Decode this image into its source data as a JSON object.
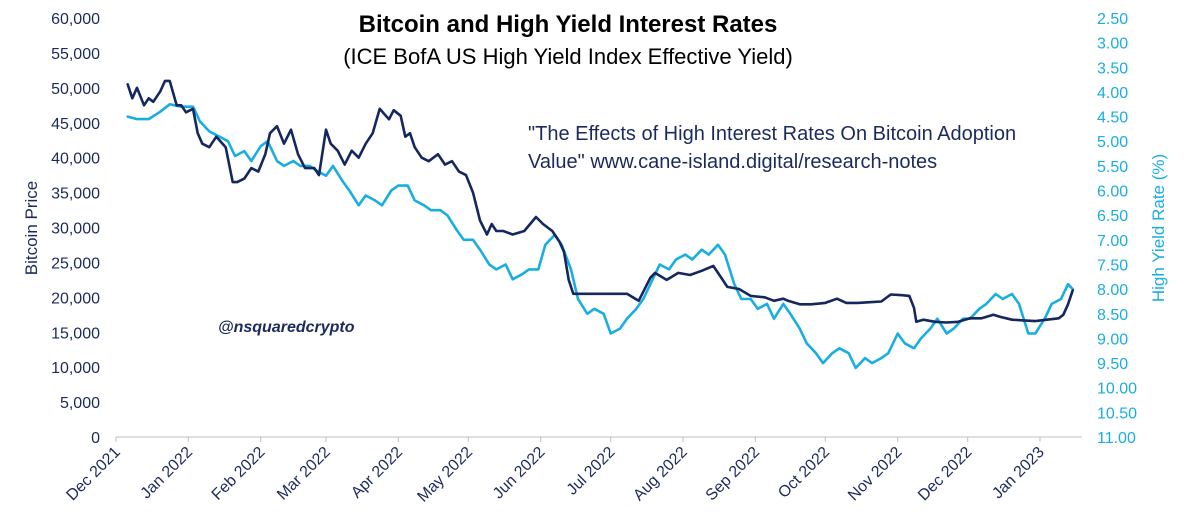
{
  "chart_data": {
    "type": "line",
    "title": "Bitcoin and High Yield Interest Rates",
    "subtitle": "(ICE BofA US High Yield Index Effective Yield)",
    "ylabel": "Bitcoin Price",
    "ylabel_right": "High Yield Rate (%)",
    "ylim": [
      0,
      60000
    ],
    "ylim_right": [
      2.5,
      11.0
    ],
    "right_axis_inverted": true,
    "yticks": [
      "0",
      "5,000",
      "10,000",
      "15,000",
      "20,000",
      "25,000",
      "30,000",
      "35,000",
      "40,000",
      "45,000",
      "50,000",
      "55,000",
      "60,000"
    ],
    "yticks_right": [
      "2.50",
      "3.00",
      "3.50",
      "4.00",
      "4.50",
      "5.00",
      "5.50",
      "6.00",
      "6.50",
      "7.00",
      "7.50",
      "8.00",
      "8.50",
      "9.00",
      "9.50",
      "10.00",
      "10.50",
      "11.00"
    ],
    "xticks": [
      "Dec 2021",
      "Jan 2022",
      "Feb 2022",
      "Mar 2022",
      "Apr 2022",
      "May 2022",
      "Jun 2022",
      "Jul 2022",
      "Aug 2022",
      "Sep 2022",
      "Oct 2022",
      "Nov 2022",
      "Dec 2022",
      "Jan 2023"
    ],
    "grid": false,
    "legend": "none",
    "annotation": [
      "\"The Effects of High Interest Rates On Bitcoin Adoption",
      "Value\"   www.cane-island.digital/research-notes"
    ],
    "watermark": "@nsquaredcrypto",
    "series": [
      {
        "axis": "left",
        "color": "#15275f",
        "x": [
          "2021-12-06",
          "2021-12-08",
          "2021-12-10",
          "2021-12-13",
          "2021-12-15",
          "2021-12-17",
          "2021-12-20",
          "2021-12-22",
          "2021-12-24",
          "2021-12-27",
          "2021-12-29",
          "2021-12-31",
          "2022-01-03",
          "2022-01-05",
          "2022-01-07",
          "2022-01-10",
          "2022-01-13",
          "2022-01-17",
          "2022-01-20",
          "2022-01-22",
          "2022-01-25",
          "2022-01-28",
          "2022-01-31",
          "2022-02-03",
          "2022-02-05",
          "2022-02-08",
          "2022-02-11",
          "2022-02-14",
          "2022-02-17",
          "2022-02-20",
          "2022-02-24",
          "2022-02-26",
          "2022-03-01",
          "2022-03-03",
          "2022-03-06",
          "2022-03-09",
          "2022-03-12",
          "2022-03-15",
          "2022-03-18",
          "2022-03-21",
          "2022-03-24",
          "2022-03-28",
          "2022-03-30",
          "2022-04-02",
          "2022-04-04",
          "2022-04-06",
          "2022-04-08",
          "2022-04-11",
          "2022-04-14",
          "2022-04-18",
          "2022-04-21",
          "2022-04-24",
          "2022-04-27",
          "2022-04-30",
          "2022-05-03",
          "2022-05-06",
          "2022-05-09",
          "2022-05-11",
          "2022-05-13",
          "2022-05-16",
          "2022-05-20",
          "2022-05-25",
          "2022-05-30",
          "2022-06-02",
          "2022-06-06",
          "2022-06-09",
          "2022-06-11",
          "2022-06-13",
          "2022-06-15",
          "2022-06-18",
          "2022-06-22",
          "2022-06-27",
          "2022-07-01",
          "2022-07-06",
          "2022-07-08",
          "2022-07-13",
          "2022-07-18",
          "2022-07-20",
          "2022-07-25",
          "2022-07-30",
          "2022-08-04",
          "2022-08-09",
          "2022-08-14",
          "2022-08-18",
          "2022-08-20",
          "2022-08-25",
          "2022-08-30",
          "2022-09-05",
          "2022-09-09",
          "2022-09-13",
          "2022-09-15",
          "2022-09-20",
          "2022-09-25",
          "2022-10-01",
          "2022-10-06",
          "2022-10-10",
          "2022-10-15",
          "2022-10-20",
          "2022-10-25",
          "2022-10-29",
          "2022-11-03",
          "2022-11-06",
          "2022-11-08",
          "2022-11-09",
          "2022-11-12",
          "2022-11-17",
          "2022-11-22",
          "2022-11-27",
          "2022-12-02",
          "2022-12-07",
          "2022-12-12",
          "2022-12-15",
          "2022-12-20",
          "2022-12-25",
          "2022-12-30",
          "2023-01-04",
          "2023-01-09",
          "2023-01-11",
          "2023-01-13",
          "2023-01-15"
        ],
        "values": [
          50500,
          48500,
          50000,
          47500,
          48500,
          48000,
          49500,
          51000,
          51000,
          47500,
          47500,
          46500,
          47000,
          43500,
          42000,
          41500,
          43000,
          41500,
          36500,
          36500,
          37000,
          38500,
          38000,
          40500,
          43500,
          44500,
          42000,
          44000,
          40500,
          38500,
          38500,
          37500,
          44000,
          42000,
          41000,
          39000,
          41000,
          40000,
          42000,
          43500,
          47000,
          45500,
          46800,
          46000,
          43000,
          43500,
          41500,
          40000,
          39500,
          40500,
          39000,
          39500,
          38000,
          37500,
          35000,
          31000,
          29000,
          30500,
          29500,
          29500,
          29000,
          29500,
          31500,
          30500,
          29500,
          28000,
          26500,
          22500,
          20500,
          20500,
          20500,
          20500,
          20500,
          20500,
          20500,
          19500,
          22800,
          23500,
          22500,
          23500,
          23200,
          23800,
          24500,
          22500,
          21500,
          21200,
          20200,
          20000,
          19500,
          19800,
          19500,
          19000,
          19000,
          19200,
          19800,
          19200,
          19200,
          19300,
          19400,
          20400,
          20300,
          20200,
          18500,
          16500,
          16800,
          16500,
          16400,
          16500,
          17000,
          17000,
          17500,
          17200,
          16800,
          16700,
          16600,
          16800,
          17000,
          17500,
          19000,
          21000
        ]
      },
      {
        "axis": "right",
        "color": "#19aee0",
        "x": [
          "2021-12-06",
          "2021-12-10",
          "2021-12-15",
          "2021-12-20",
          "2021-12-24",
          "2021-12-29",
          "2022-01-03",
          "2022-01-06",
          "2022-01-10",
          "2022-01-14",
          "2022-01-18",
          "2022-01-21",
          "2022-01-25",
          "2022-01-28",
          "2022-02-01",
          "2022-02-04",
          "2022-02-08",
          "2022-02-11",
          "2022-02-15",
          "2022-02-18",
          "2022-02-22",
          "2022-02-25",
          "2022-03-01",
          "2022-03-04",
          "2022-03-08",
          "2022-03-11",
          "2022-03-15",
          "2022-03-18",
          "2022-03-22",
          "2022-03-25",
          "2022-03-29",
          "2022-04-01",
          "2022-04-05",
          "2022-04-08",
          "2022-04-12",
          "2022-04-15",
          "2022-04-19",
          "2022-04-22",
          "2022-04-26",
          "2022-04-29",
          "2022-05-03",
          "2022-05-06",
          "2022-05-10",
          "2022-05-13",
          "2022-05-17",
          "2022-05-20",
          "2022-05-24",
          "2022-05-27",
          "2022-05-31",
          "2022-06-03",
          "2022-06-07",
          "2022-06-10",
          "2022-06-14",
          "2022-06-17",
          "2022-06-21",
          "2022-06-24",
          "2022-06-28",
          "2022-07-01",
          "2022-07-05",
          "2022-07-08",
          "2022-07-12",
          "2022-07-15",
          "2022-07-19",
          "2022-07-22",
          "2022-07-26",
          "2022-07-29",
          "2022-08-02",
          "2022-08-05",
          "2022-08-09",
          "2022-08-12",
          "2022-08-16",
          "2022-08-19",
          "2022-08-23",
          "2022-08-26",
          "2022-08-30",
          "2022-09-02",
          "2022-09-06",
          "2022-09-09",
          "2022-09-13",
          "2022-09-16",
          "2022-09-20",
          "2022-09-23",
          "2022-09-27",
          "2022-09-30",
          "2022-10-04",
          "2022-10-07",
          "2022-10-11",
          "2022-10-14",
          "2022-10-18",
          "2022-10-21",
          "2022-10-25",
          "2022-10-28",
          "2022-11-01",
          "2022-11-04",
          "2022-11-08",
          "2022-11-11",
          "2022-11-15",
          "2022-11-18",
          "2022-11-22",
          "2022-11-25",
          "2022-11-29",
          "2022-12-02",
          "2022-12-06",
          "2022-12-09",
          "2022-12-13",
          "2022-12-16",
          "2022-12-20",
          "2022-12-23",
          "2022-12-27",
          "2022-12-30",
          "2023-01-03",
          "2023-01-06",
          "2023-01-10",
          "2023-01-13",
          "2023-01-15"
        ],
        "values": [
          4.5,
          4.55,
          4.55,
          4.4,
          4.25,
          4.3,
          4.3,
          4.6,
          4.8,
          4.9,
          5.0,
          5.3,
          5.2,
          5.4,
          5.1,
          5.0,
          5.4,
          5.5,
          5.4,
          5.5,
          5.5,
          5.6,
          5.7,
          5.5,
          5.8,
          6.0,
          6.3,
          6.1,
          6.2,
          6.3,
          6.0,
          5.9,
          5.9,
          6.2,
          6.3,
          6.4,
          6.4,
          6.5,
          6.8,
          7.0,
          7.0,
          7.2,
          7.5,
          7.6,
          7.5,
          7.8,
          7.7,
          7.6,
          7.6,
          7.1,
          6.9,
          7.1,
          7.6,
          8.2,
          8.5,
          8.4,
          8.5,
          8.9,
          8.8,
          8.6,
          8.4,
          8.2,
          7.8,
          7.5,
          7.6,
          7.4,
          7.3,
          7.4,
          7.2,
          7.3,
          7.1,
          7.3,
          7.9,
          8.2,
          8.2,
          8.4,
          8.3,
          8.6,
          8.3,
          8.5,
          8.8,
          9.1,
          9.3,
          9.5,
          9.3,
          9.2,
          9.3,
          9.6,
          9.4,
          9.5,
          9.4,
          9.3,
          8.9,
          9.1,
          9.2,
          9.0,
          8.8,
          8.6,
          8.9,
          8.8,
          8.6,
          8.6,
          8.4,
          8.3,
          8.1,
          8.2,
          8.1,
          8.3,
          8.9,
          8.9,
          8.6,
          8.3,
          8.2,
          7.9,
          8.0
        ]
      }
    ]
  }
}
